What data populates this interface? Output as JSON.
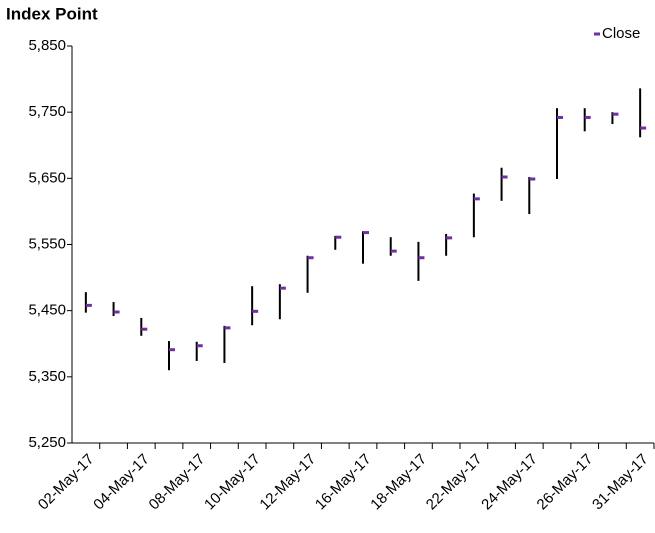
{
  "chart_data": {
    "type": "hlc",
    "title": "Index Point",
    "categories": [
      "02-May-17",
      null,
      "04-May-17",
      null,
      "08-May-17",
      null,
      "10-May-17",
      null,
      "12-May-17",
      null,
      "16-May-17",
      null,
      "18-May-17",
      null,
      "22-May-17",
      null,
      "24-May-17",
      null,
      "26-May-17",
      null,
      "31-May-17"
    ],
    "high": [
      5478,
      5463,
      5439,
      5404,
      5403,
      5427,
      5487,
      5490,
      5533,
      5563,
      5570,
      5561,
      5554,
      5566,
      5627,
      5666,
      5652,
      5756,
      5756,
      5750,
      5786
    ],
    "low": [
      5447,
      5442,
      5412,
      5360,
      5374,
      5371,
      5428,
      5437,
      5477,
      5542,
      5521,
      5533,
      5495,
      5533,
      5561,
      5616,
      5596,
      5649,
      5721,
      5732,
      5712
    ],
    "range_color": "#000000",
    "series": [
      {
        "name": "Close",
        "color": "#7030a0",
        "values": [
          5458,
          5448,
          5422,
          5391,
          5397,
          5424,
          5449,
          5484,
          5530,
          5561,
          5568,
          5540,
          5530,
          5560,
          5619,
          5652,
          5649,
          5742,
          5742,
          5747,
          5726
        ]
      }
    ],
    "ylim": [
      5250,
      5850
    ],
    "yticks": [
      {
        "value": 5250,
        "label": "5,250"
      },
      {
        "value": 5350,
        "label": "5,350"
      },
      {
        "value": 5450,
        "label": "5,450"
      },
      {
        "value": 5550,
        "label": "5,550"
      },
      {
        "value": 5650,
        "label": "5,650"
      },
      {
        "value": 5750,
        "label": "5,750"
      },
      {
        "value": 5850,
        "label": "5,850"
      }
    ],
    "legend": "top-right"
  }
}
